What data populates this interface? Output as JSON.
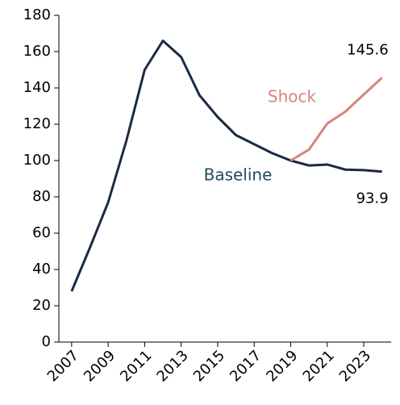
{
  "chart_data": {
    "type": "line",
    "x": [
      2007,
      2008,
      2009,
      2010,
      2011,
      2012,
      2013,
      2014,
      2015,
      2016,
      2017,
      2018,
      2019,
      2020,
      2021,
      2022,
      2023,
      2024
    ],
    "series": [
      {
        "name": "Baseline",
        "color": "#1b2a44",
        "values": [
          28,
          52,
          77,
          111,
          150,
          166,
          157,
          136,
          124,
          114,
          109,
          104,
          100,
          97.3,
          97.8,
          95,
          94.7,
          93.9
        ],
        "value_labels": [
          null,
          null,
          null,
          null,
          null,
          null,
          null,
          null,
          null,
          null,
          null,
          null,
          null,
          null,
          null,
          null,
          null,
          "93.9"
        ]
      },
      {
        "name": "Shock",
        "color": "#d9837f",
        "values": [
          null,
          null,
          null,
          null,
          null,
          null,
          null,
          null,
          null,
          null,
          null,
          null,
          100,
          106,
          120.4,
          127,
          136.4,
          145.6
        ],
        "value_labels": [
          null,
          null,
          null,
          null,
          null,
          null,
          null,
          null,
          null,
          null,
          null,
          null,
          null,
          null,
          null,
          null,
          null,
          "145.6"
        ]
      }
    ],
    "xlim": [
      2006.3,
      2024.5
    ],
    "xticks": [
      2007,
      2009,
      2011,
      2013,
      2015,
      2017,
      2019,
      2021,
      2023
    ],
    "ylim": [
      0,
      180
    ],
    "yticks": [
      0,
      20,
      40,
      60,
      80,
      100,
      120,
      140,
      160,
      180
    ]
  }
}
